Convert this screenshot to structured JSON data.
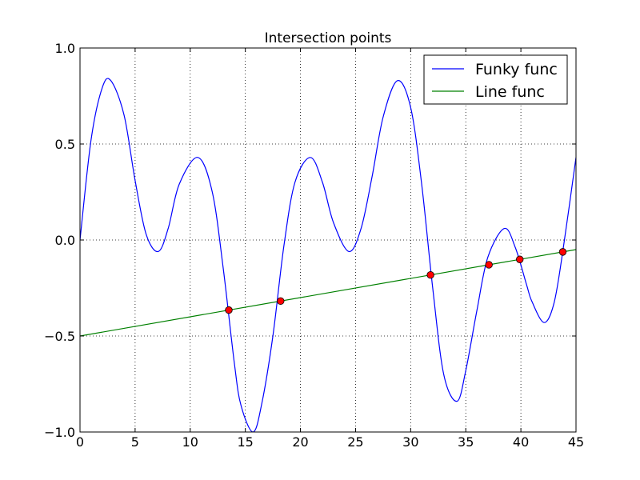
{
  "chart_data": {
    "type": "line",
    "title": "Intersection points",
    "xlabel": "",
    "ylabel": "",
    "xlim": [
      0,
      45
    ],
    "ylim": [
      -1.0,
      1.0
    ],
    "xticks": [
      0,
      5,
      10,
      15,
      20,
      25,
      30,
      35,
      40,
      45
    ],
    "xtick_labels": [
      "0",
      "5",
      "10",
      "15",
      "20",
      "25",
      "30",
      "35",
      "40",
      "45"
    ],
    "yticks": [
      1.0,
      0.5,
      0.0,
      -0.5,
      -1.0
    ],
    "ytick_labels": [
      "1.0",
      "0.5",
      "0.0",
      "−0.5",
      "−1.0"
    ],
    "grid": true,
    "legend_position": "top-right",
    "series": [
      {
        "name": "Funky func",
        "color": "#0000ff",
        "x": [
          0,
          1,
          2,
          2.8,
          4,
          5,
          6,
          7.1,
          8,
          9,
          10.7,
          12,
          13,
          14,
          14.6,
          15.7,
          16.5,
          17.5,
          18.5,
          19.5,
          20.9,
          22,
          23,
          24.4,
          25.5,
          26.5,
          27.5,
          28.8,
          30,
          31,
          32,
          33,
          34.2,
          35,
          36,
          37,
          38.5,
          39.5,
          40.5,
          41,
          42.1,
          43,
          43.8,
          45
        ],
        "y": [
          0.0,
          0.52,
          0.79,
          0.83,
          0.65,
          0.31,
          0.03,
          -0.06,
          0.06,
          0.29,
          0.43,
          0.25,
          -0.15,
          -0.64,
          -0.86,
          -1.0,
          -0.85,
          -0.5,
          -0.03,
          0.3,
          0.43,
          0.3,
          0.09,
          -0.06,
          0.06,
          0.33,
          0.64,
          0.83,
          0.69,
          0.29,
          -0.25,
          -0.7,
          -0.84,
          -0.68,
          -0.37,
          -0.09,
          0.06,
          -0.04,
          -0.23,
          -0.32,
          -0.43,
          -0.33,
          -0.06,
          0.43
        ]
      },
      {
        "name": "Line func",
        "color": "#008000",
        "x": [
          0,
          45
        ],
        "y": [
          -0.5,
          -0.05
        ]
      }
    ],
    "intersection_points": {
      "color": "#ff0000",
      "x": [
        13.5,
        18.2,
        31.8,
        37.1,
        39.9,
        43.8
      ],
      "y": [
        -0.365,
        -0.318,
        -0.182,
        -0.129,
        -0.101,
        -0.062
      ]
    }
  }
}
